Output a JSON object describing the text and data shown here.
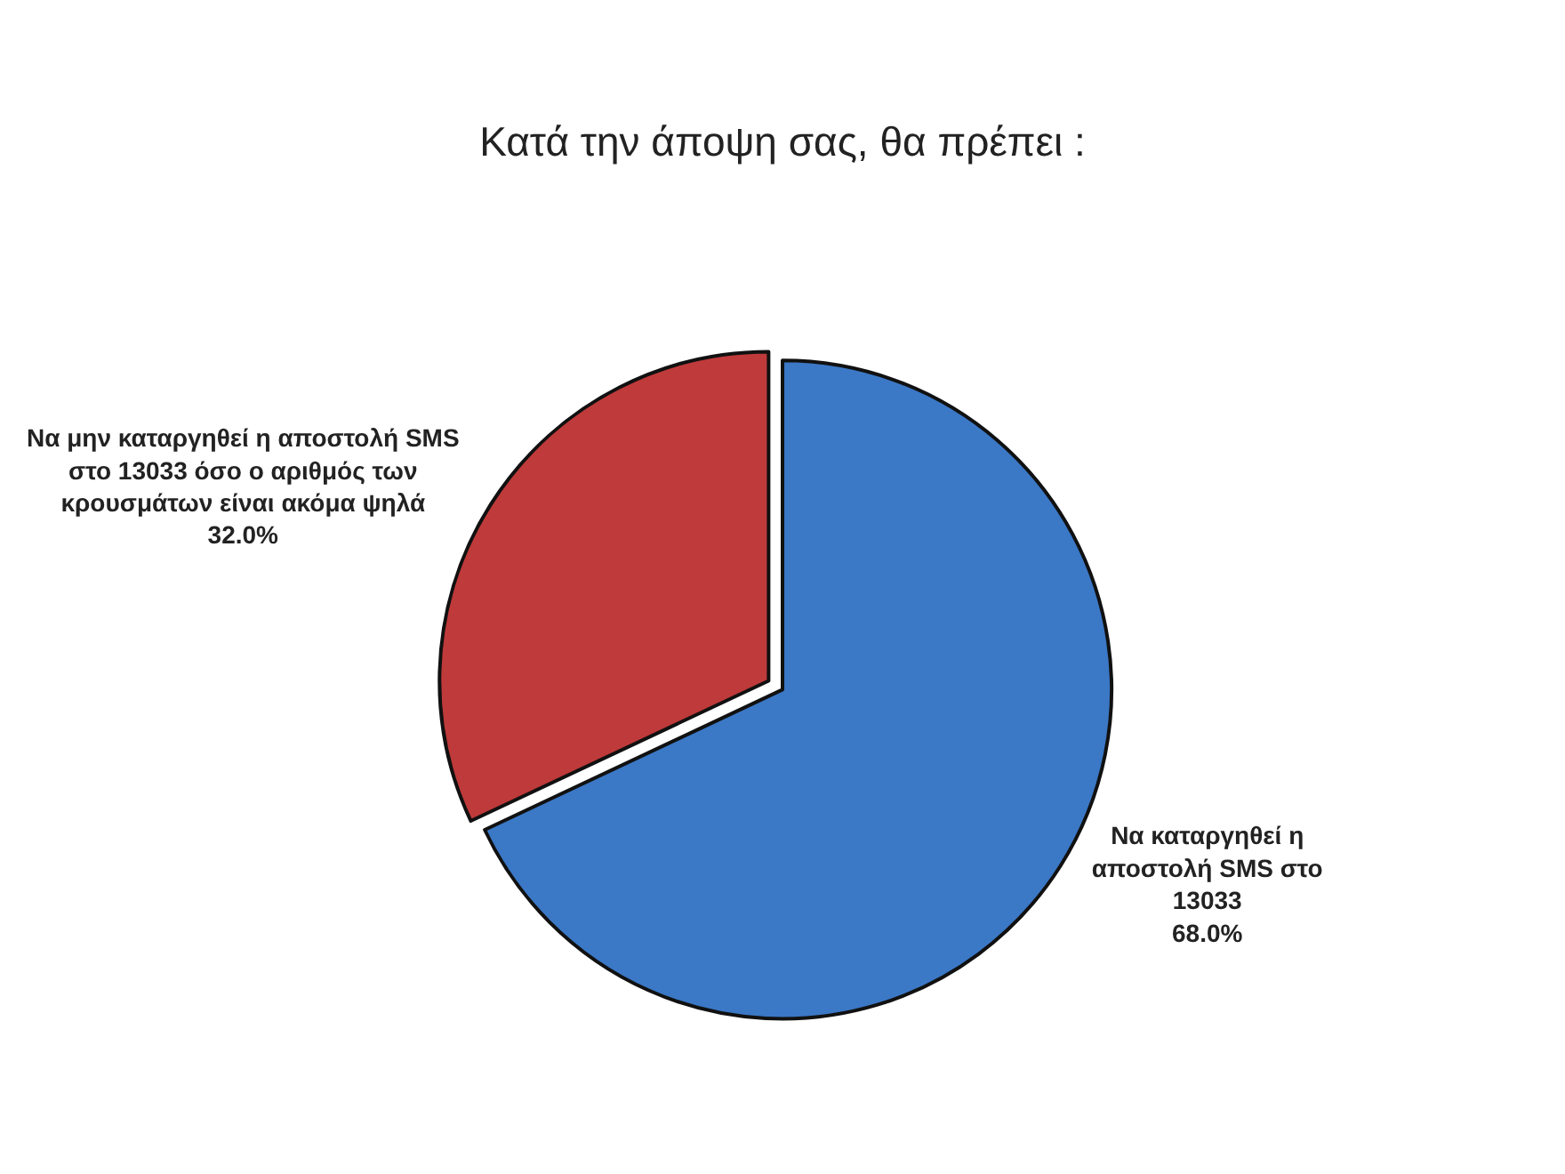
{
  "chart_data": {
    "type": "pie",
    "title": "Κατά την άποψη σας, θα πρέπει :",
    "categories": [
      "Να καταργηθεί η αποστολή SMS στο 13033",
      "Να μην καταργηθεί η αποστολή SMS στο 13033 όσο ο αριθμός των κρουσμάτων είναι ακόμα ψηλά"
    ],
    "values": [
      68,
      32
    ],
    "value_labels": [
      "68.0%",
      "32.0%"
    ],
    "colors": [
      "#3b78c6",
      "#bf3a3a"
    ],
    "legend": false
  }
}
